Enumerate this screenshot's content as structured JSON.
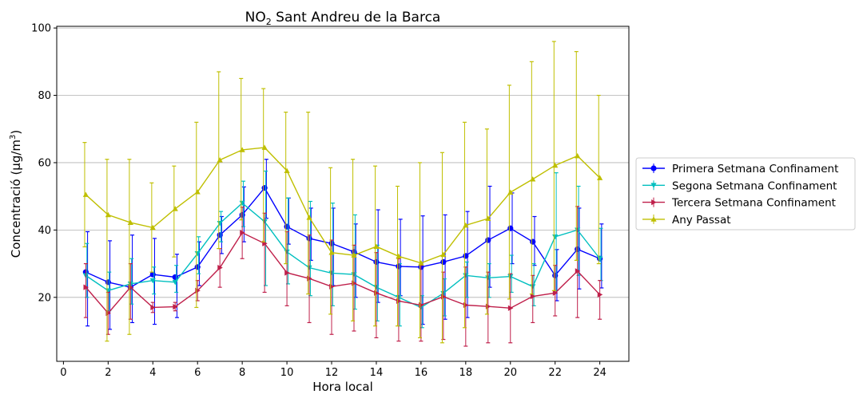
{
  "chart_data": {
    "type": "line",
    "title": "NO",
    "title_sub": "2",
    "title_rest": " Sant Andreu de la Barca",
    "xlabel": "Hora local",
    "ylabel": "Concentració (μg/m",
    "ylabel_sup": "3",
    "ylabel_end": ")",
    "xlim": [
      -0.3,
      25.3
    ],
    "ylim": [
      1,
      100.5
    ],
    "xticks": [
      "0",
      "2",
      "4",
      "6",
      "8",
      "10",
      "12",
      "14",
      "16",
      "18",
      "20",
      "22",
      "24"
    ],
    "yticks": [
      "20",
      "40",
      "60",
      "80",
      "100"
    ],
    "grid": "horizontal",
    "legend_position": "right",
    "x": [
      1,
      2,
      3,
      4,
      5,
      6,
      7,
      8,
      9,
      10,
      11,
      12,
      13,
      14,
      15,
      16,
      17,
      18,
      19,
      20,
      21,
      22,
      23,
      24
    ],
    "series": [
      {
        "name": "Primera Setmana Confinament",
        "color": "#0000ff",
        "marker": "circle",
        "values": [
          27.5,
          24.5,
          23,
          26.8,
          26,
          29,
          38.5,
          44.5,
          52.5,
          41,
          37.5,
          36,
          33.5,
          30.5,
          29.2,
          29,
          30.5,
          32.3,
          37,
          40.5,
          36.5,
          26.5,
          34.3,
          31.5
        ],
        "upper": [
          39.5,
          36.8,
          38.5,
          37.5,
          32.8,
          36.5,
          44,
          52.8,
          61,
          49.5,
          46.5,
          46.5,
          41.8,
          46,
          43.2,
          44.2,
          44.5,
          45.5,
          53,
          51,
          44,
          34.2,
          46.5,
          41.8
        ],
        "lower": [
          11.5,
          10.5,
          12.5,
          12,
          14,
          23.5,
          33,
          36.5,
          43.5,
          35.8,
          31,
          23.5,
          20,
          18.5,
          20.5,
          12,
          13.5,
          14,
          23,
          30,
          29.5,
          19,
          22.5,
          22.8
        ]
      },
      {
        "name": "Segona Setmana Confinament",
        "color": "#00bfbf",
        "marker": "triangle-down",
        "values": [
          26.5,
          22,
          24,
          25,
          24.5,
          33,
          42,
          48,
          42.5,
          33.5,
          28.8,
          27.2,
          26.8,
          23,
          20,
          17,
          21.2,
          26.5,
          25.8,
          26.2,
          23.2,
          38,
          40,
          31.5
        ],
        "upper": [
          36,
          27.5,
          31.5,
          29,
          29.5,
          38,
          45.5,
          54.5,
          57.5,
          49.5,
          48.5,
          48,
          44.5,
          35.5,
          30,
          20.5,
          25.5,
          30.5,
          30,
          32.5,
          30,
          57,
          53,
          40.5
        ],
        "lower": [
          20,
          16,
          18,
          21,
          21.5,
          27,
          36.5,
          41,
          23.5,
          24,
          20.5,
          17.5,
          16.5,
          13,
          11.5,
          11,
          14.5,
          20,
          20,
          21.5,
          17.5,
          22,
          26.5,
          25
        ]
      },
      {
        "name": "Tercera Setmana Confinament",
        "color": "#bf1f4a",
        "marker": "triangle-right",
        "values": [
          23,
          15.3,
          23,
          17,
          17.2,
          22,
          28.8,
          39.2,
          36,
          27.3,
          25.6,
          23.2,
          24.2,
          21.3,
          18.9,
          17.7,
          20.2,
          17.7,
          17.3,
          16.8,
          20.3,
          21.3,
          27.8,
          20.8
        ],
        "upper": [
          30,
          21.5,
          30,
          18.5,
          18.5,
          25,
          34.5,
          46.8,
          45,
          39.5,
          38.5,
          37,
          35.5,
          33.3,
          31.5,
          29.5,
          27.5,
          29,
          27.5,
          27,
          26.5,
          29.5,
          47,
          25
        ],
        "lower": [
          14,
          9,
          13.5,
          15.5,
          16,
          19,
          23,
          31.5,
          21.5,
          17.5,
          12.5,
          9,
          10,
          8,
          7,
          7,
          7.5,
          5.5,
          6.5,
          6.5,
          12.5,
          14.5,
          14,
          13.5
        ]
      },
      {
        "name": "Any Passat",
        "color": "#bfbf00",
        "marker": "triangle-up",
        "values": [
          50.5,
          44.5,
          42.2,
          40.7,
          46.3,
          51.3,
          60.8,
          63.8,
          64.5,
          57.6,
          43.7,
          33.3,
          32.5,
          35.1,
          32.2,
          30.2,
          32.7,
          41.4,
          43.4,
          51.2,
          55.1,
          59.2,
          62,
          55.5
        ],
        "upper": [
          66,
          61,
          61,
          54,
          59,
          72,
          87,
          85,
          82,
          75,
          75,
          58.5,
          61,
          59,
          53,
          60,
          63,
          72,
          70,
          83,
          90,
          96,
          93,
          80
        ],
        "lower": [
          35,
          7,
          9,
          27.5,
          32,
          17,
          34.5,
          43,
          36.5,
          30,
          21,
          15,
          13,
          11.5,
          11.5,
          8,
          6.5,
          11,
          15,
          19.5,
          21,
          22,
          31,
          30
        ]
      }
    ]
  }
}
